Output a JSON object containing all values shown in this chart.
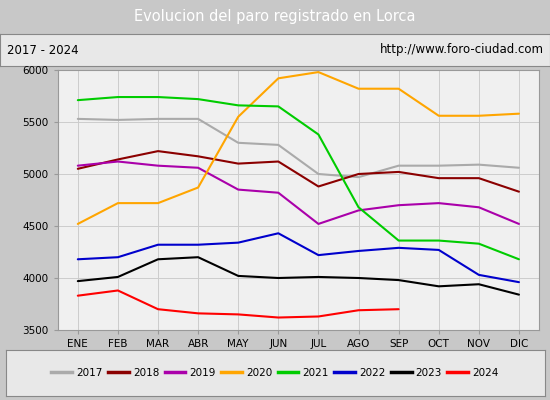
{
  "title": "Evolucion del paro registrado en Lorca",
  "subtitle_left": "2017 - 2024",
  "subtitle_right": "http://www.foro-ciudad.com",
  "months": [
    "ENE",
    "FEB",
    "MAR",
    "ABR",
    "MAY",
    "JUN",
    "JUL",
    "AGO",
    "SEP",
    "OCT",
    "NOV",
    "DIC"
  ],
  "ylim": [
    3500,
    6000
  ],
  "yticks": [
    3500,
    4000,
    4500,
    5000,
    5500,
    6000
  ],
  "series": {
    "2017": {
      "color": "#aaaaaa",
      "data": [
        5530,
        5520,
        5530,
        5530,
        5300,
        5280,
        5000,
        4970,
        5080,
        5080,
        5090,
        5060
      ]
    },
    "2018": {
      "color": "#8b0000",
      "data": [
        5050,
        5140,
        5220,
        5170,
        5100,
        5120,
        4880,
        5000,
        5020,
        4960,
        4960,
        4830
      ]
    },
    "2019": {
      "color": "#aa00aa",
      "data": [
        5080,
        5120,
        5080,
        5060,
        4850,
        4820,
        4520,
        4650,
        4700,
        4720,
        4680,
        4520
      ]
    },
    "2020": {
      "color": "#ffa500",
      "data": [
        4520,
        4720,
        4720,
        4870,
        5550,
        5920,
        5980,
        5820,
        5820,
        5560,
        5560,
        5580
      ]
    },
    "2021": {
      "color": "#00cc00",
      "data": [
        5710,
        5740,
        5740,
        5720,
        5660,
        5650,
        5380,
        4680,
        4360,
        4360,
        4330,
        4180
      ]
    },
    "2022": {
      "color": "#0000cc",
      "data": [
        4180,
        4200,
        4320,
        4320,
        4340,
        4430,
        4220,
        4260,
        4290,
        4270,
        4030,
        3960
      ]
    },
    "2023": {
      "color": "#000000",
      "data": [
        3970,
        4010,
        4180,
        4200,
        4020,
        4000,
        4010,
        4000,
        3980,
        3920,
        3940,
        3840
      ]
    },
    "2024": {
      "color": "#ff0000",
      "data": [
        3830,
        3880,
        3700,
        3660,
        3650,
        3620,
        3630,
        3690,
        3700,
        null,
        null,
        null
      ]
    }
  },
  "fig_bg": "#c8c8c8",
  "plot_bg": "#f0f0f0",
  "title_bg": "#4472c4",
  "title_fg": "#ffffff",
  "sub_bg": "#e8e8e8",
  "leg_bg": "#e8e8e8",
  "grid_color": "#cccccc",
  "title_fontsize": 10.5,
  "tick_fontsize": 7.5,
  "legend_fontsize": 7.5
}
